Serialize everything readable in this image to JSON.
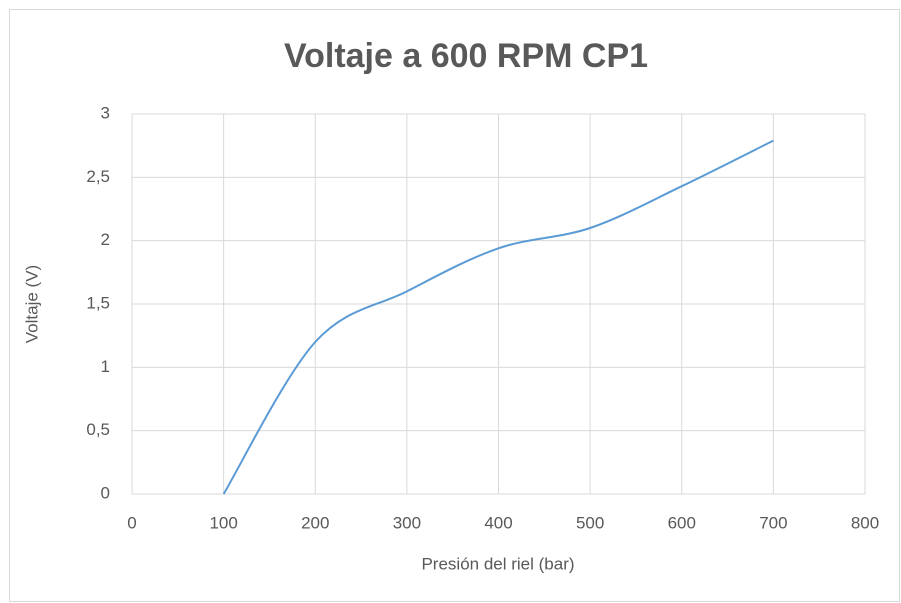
{
  "chart_data": {
    "type": "line",
    "title": "Voltaje a 600 RPM CP1",
    "x_label": "Presión del riel (bar)",
    "y_label": "Voltaje (V)",
    "x": [
      100,
      200,
      300,
      400,
      500,
      600,
      700
    ],
    "series": [
      {
        "name": "Voltaje",
        "color": "#5b9bd5",
        "values": [
          0,
          1.2,
          1.6,
          1.94,
          2.1,
          2.43,
          2.79
        ]
      }
    ],
    "xlim": [
      0,
      800
    ],
    "xticks": [
      0,
      100,
      200,
      300,
      400,
      500,
      600,
      700,
      800
    ],
    "ylim": [
      0,
      3
    ],
    "yticks": [
      0,
      {
        "value": 0.5,
        "label": "0,5"
      },
      1,
      {
        "value": 1.5,
        "label": "1,5"
      },
      2,
      {
        "value": 2.5,
        "label": "2,5"
      },
      3
    ],
    "grid": true,
    "smooth": true
  }
}
